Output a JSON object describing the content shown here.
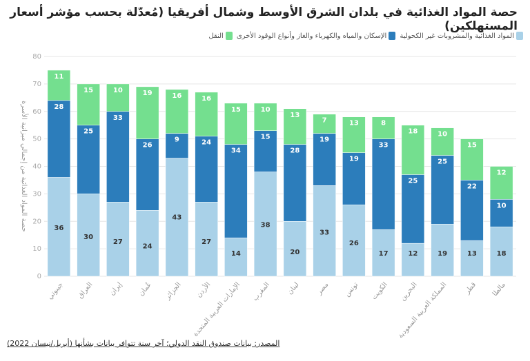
{
  "chart_data": {
    "type": "bar",
    "stacked": true,
    "title": "حصة المواد الغذائية في بلدان الشرق الأوسط وشمال أفريقيا (مُعدّلة بحسب مؤشر أسعار المستهلكين)",
    "ylabel": "حصة المواد الغذائية من إجمالي ميزانية الأسرة",
    "xlabel": "",
    "ylim": [
      0,
      80
    ],
    "yticks": [
      0,
      10,
      20,
      30,
      40,
      50,
      60,
      70,
      80
    ],
    "grid": true,
    "legend_position": "top-right",
    "categories": [
      "جيبوتي",
      "العراق",
      "إيران",
      "عُمان",
      "الجزائر",
      "الأردن",
      "الإمارات العربية المتحدة",
      "المغرب",
      "لبنان",
      "مصر",
      "تونس",
      "الكويت",
      "البحرين",
      "المملكة العربية السعودية",
      "قطر",
      "مالطا"
    ],
    "series": [
      {
        "name": "المواد الغذائية والمشروبات غير الكحولية",
        "color": "#a9d1e8",
        "label_color": "#333333",
        "values": [
          36,
          30,
          27,
          24,
          43,
          27,
          14,
          38,
          20,
          33,
          26,
          17,
          12,
          19,
          13,
          18
        ]
      },
      {
        "name": "الإسكان والمياه والكهرباء والغاز وأنواع الوقود الأخرى",
        "color": "#2c7dbb",
        "label_color": "#ffffff",
        "values": [
          28,
          25,
          33,
          26,
          9,
          24,
          34,
          15,
          28,
          19,
          19,
          33,
          25,
          25,
          22,
          10
        ]
      },
      {
        "name": "النقل",
        "color": "#74df8f",
        "label_color": "#ffffff",
        "values": [
          11,
          15,
          10,
          19,
          16,
          16,
          15,
          10,
          13,
          7,
          13,
          8,
          18,
          10,
          15,
          12
        ]
      }
    ],
    "source": "المصدر: بيانات صندوق النقد الدولي؛ آخر سنة تتوافر بيانات بشأنها (أبريل/نيسان 2022)"
  }
}
